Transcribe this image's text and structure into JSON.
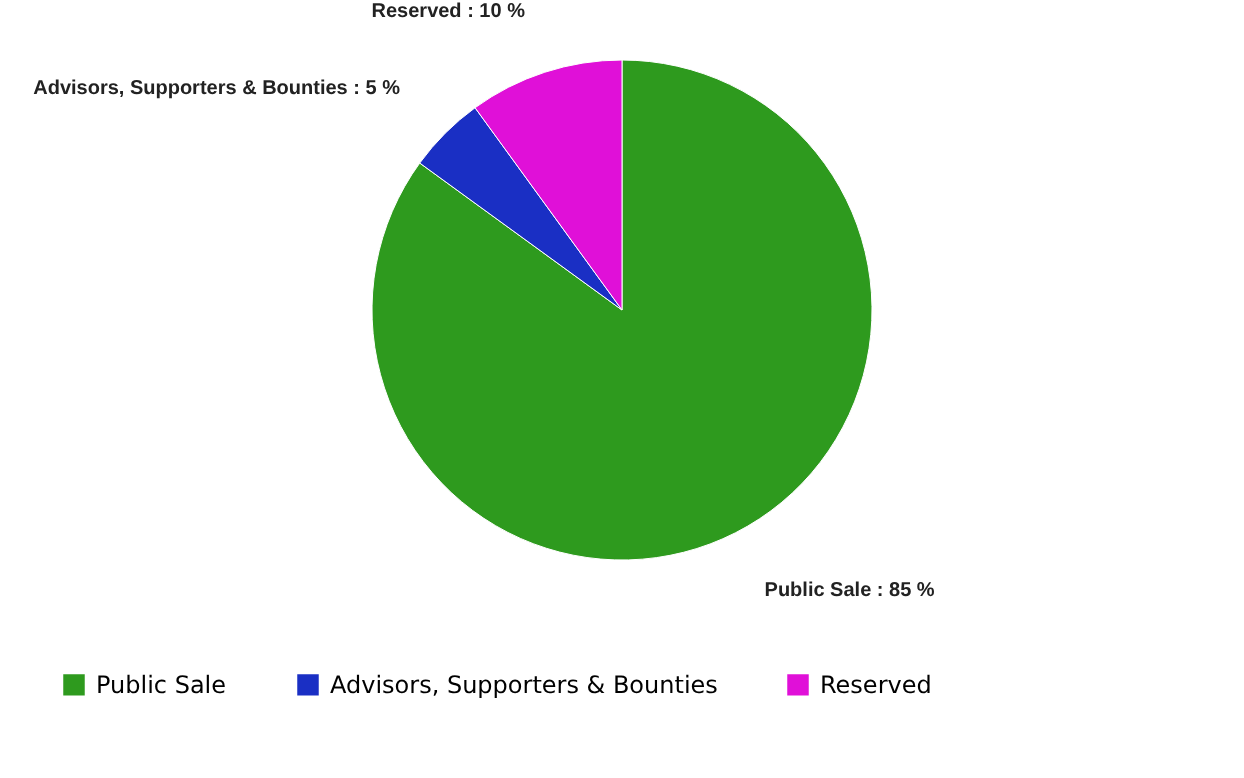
{
  "chart_data": {
    "type": "pie",
    "categories": [
      "Public Sale",
      "Advisors, Supporters & Bounties",
      "Reserved"
    ],
    "values": [
      85,
      5,
      10
    ],
    "colors": [
      "#2e9a1e",
      "#1a2fc4",
      "#e010d8"
    ],
    "value_labels": [
      "Public Sale : 85 %",
      "Advisors, Supporters & Bounties : 5 %",
      "Reserved : 10 %"
    ],
    "legend": "bottom"
  }
}
